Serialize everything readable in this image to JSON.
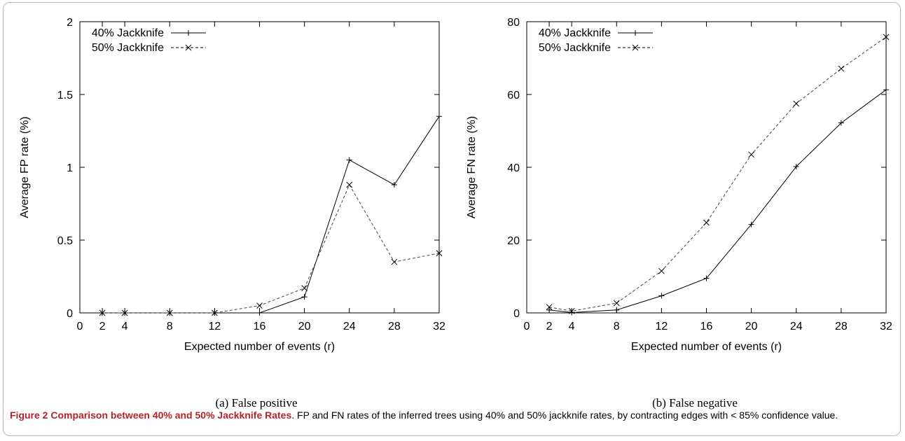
{
  "chart_data": [
    {
      "type": "line",
      "ylabel": "Average FP rate (%)",
      "xlabel": "Expected number of events (r)",
      "x_ticks": [
        0,
        2,
        4,
        8,
        12,
        16,
        20,
        24,
        28,
        32
      ],
      "y_ticks": [
        0,
        0.5,
        1,
        1.5,
        2
      ],
      "y_tick_labels": [
        "0",
        "0.5",
        "1",
        "1.5",
        "2"
      ],
      "xlim": [
        0,
        32
      ],
      "ylim": [
        0,
        2
      ],
      "legend_position": "top-left",
      "series": [
        {
          "name": "40% Jackknife",
          "style": "solid",
          "marker": "+",
          "x": [
            2,
            4,
            8,
            12,
            16,
            20,
            24,
            28,
            32
          ],
          "values": [
            0,
            0,
            0,
            0,
            0,
            0.11,
            1.05,
            0.88,
            1.35
          ]
        },
        {
          "name": "50% Jackknife",
          "style": "dashed",
          "marker": "x",
          "x": [
            2,
            4,
            8,
            12,
            16,
            20,
            24,
            28,
            32
          ],
          "values": [
            0,
            0,
            0,
            0,
            0.05,
            0.17,
            0.88,
            0.35,
            0.41
          ]
        }
      ],
      "subcaption": "(a) False positive"
    },
    {
      "type": "line",
      "ylabel": "Average FN rate (%)",
      "xlabel": "Expected number of events (r)",
      "x_ticks": [
        0,
        2,
        4,
        8,
        12,
        16,
        20,
        24,
        28,
        32
      ],
      "y_ticks": [
        0,
        20,
        40,
        60,
        80
      ],
      "y_tick_labels": [
        "0",
        "20",
        "40",
        "60",
        "80"
      ],
      "xlim": [
        0,
        32
      ],
      "ylim": [
        0,
        80
      ],
      "legend_position": "top-left",
      "series": [
        {
          "name": "40% Jackknife",
          "style": "solid",
          "marker": "+",
          "x": [
            2,
            4,
            8,
            12,
            16,
            20,
            24,
            28,
            32
          ],
          "values": [
            0.8,
            0.1,
            0.8,
            4.7,
            9.5,
            24.3,
            40.2,
            52.2,
            61.3
          ]
        },
        {
          "name": "50% Jackknife",
          "style": "dashed",
          "marker": "x",
          "x": [
            2,
            4,
            8,
            12,
            16,
            20,
            24,
            28,
            32
          ],
          "values": [
            1.6,
            0.5,
            2.7,
            11.5,
            24.8,
            43.5,
            57.5,
            67.1,
            75.8
          ]
        }
      ],
      "subcaption": "(b) False negative"
    }
  ],
  "caption": {
    "bold": "Figure 2 Comparison between 40% and 50% Jackknife Rates",
    "text": ". FP and FN rates of the inferred trees using 40% and 50% jackknife rates, by contracting edges with < 85% confidence value."
  }
}
